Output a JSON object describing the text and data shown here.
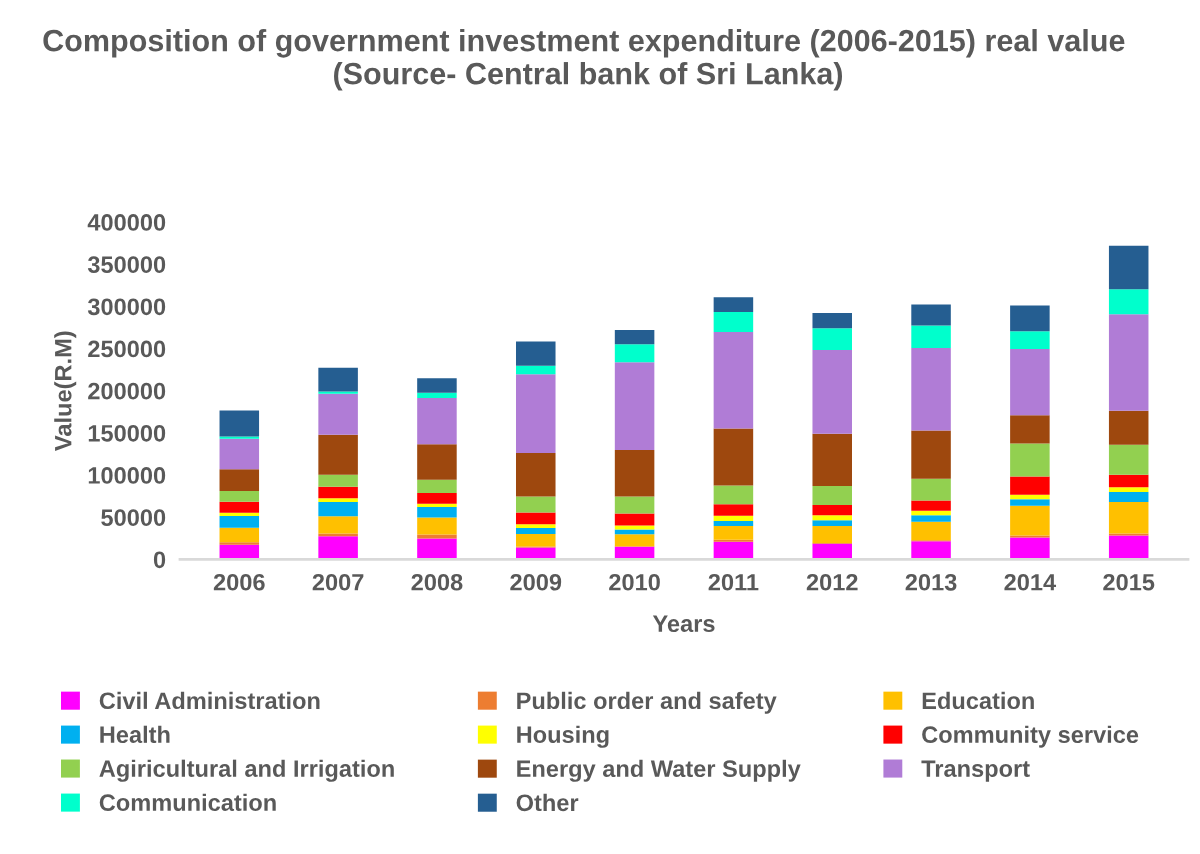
{
  "chart_data": {
    "type": "bar",
    "stacked": true,
    "title": "Composition of government investment expenditure (2006-2015) real value  (Source- Central bank of Sri Lanka)",
    "xlabel": "Years",
    "ylabel": "Value(R.M)",
    "categories": [
      "2006",
      "2007",
      "2008",
      "2009",
      "2010",
      "2011",
      "2012",
      "2013",
      "2014",
      "2015"
    ],
    "ylim": [
      0,
      400000
    ],
    "yticks": [
      0,
      50000,
      100000,
      150000,
      200000,
      250000,
      300000,
      350000,
      400000
    ],
    "grid": false,
    "legend": "bottom",
    "series": [
      {
        "name": "Civil Administration",
        "color": "#ff00ff",
        "values": [
          17300,
          27400,
          24600,
          14100,
          14900,
          21000,
          18500,
          21400,
          25800,
          28200
        ]
      },
      {
        "name": "Public order and safety",
        "color": "#ed7d31",
        "values": [
          2900,
          3200,
          4800,
          1200,
          800,
          2400,
          800,
          1200,
          2400,
          2400
        ]
      },
      {
        "name": "Education",
        "color": "#ffc000",
        "values": [
          17400,
          20600,
          20200,
          14900,
          14100,
          16100,
          20200,
          22100,
          35500,
          37500
        ]
      },
      {
        "name": "Health",
        "color": "#00b0f0",
        "values": [
          13700,
          16900,
          12500,
          6900,
          5700,
          6000,
          6800,
          7700,
          7600,
          11700
        ]
      },
      {
        "name": "Housing",
        "color": "#ffff00",
        "values": [
          4000,
          4400,
          4000,
          4400,
          4800,
          6100,
          6100,
          5200,
          5300,
          5600
        ]
      },
      {
        "name": "Community service",
        "color": "#ff0000",
        "values": [
          12900,
          13700,
          12500,
          14100,
          14100,
          13700,
          12100,
          12100,
          21700,
          14900
        ]
      },
      {
        "name": "Agiricultural and Irrigation",
        "color": "#92d050",
        "values": [
          12900,
          14100,
          15700,
          19000,
          20200,
          22200,
          22500,
          25800,
          39100,
          35500
        ]
      },
      {
        "name": "Energy and Water Supply",
        "color": "#9e480e",
        "values": [
          25800,
          47600,
          42300,
          51500,
          55200,
          67700,
          62100,
          57200,
          33500,
          40300
        ]
      },
      {
        "name": "Transport",
        "color": "#b07cd6",
        "values": [
          36200,
          48400,
          54800,
          93500,
          103900,
          114400,
          99100,
          98000,
          78600,
          114500
        ]
      },
      {
        "name": "Communication",
        "color": "#00ffcc",
        "values": [
          2500,
          2800,
          6100,
          10100,
          21400,
          23800,
          25800,
          26600,
          20900,
          29800
        ]
      },
      {
        "name": "Other",
        "color": "#255e91",
        "values": [
          31000,
          28200,
          17300,
          28600,
          16900,
          17300,
          18200,
          25000,
          30600,
          51600
        ]
      }
    ]
  }
}
